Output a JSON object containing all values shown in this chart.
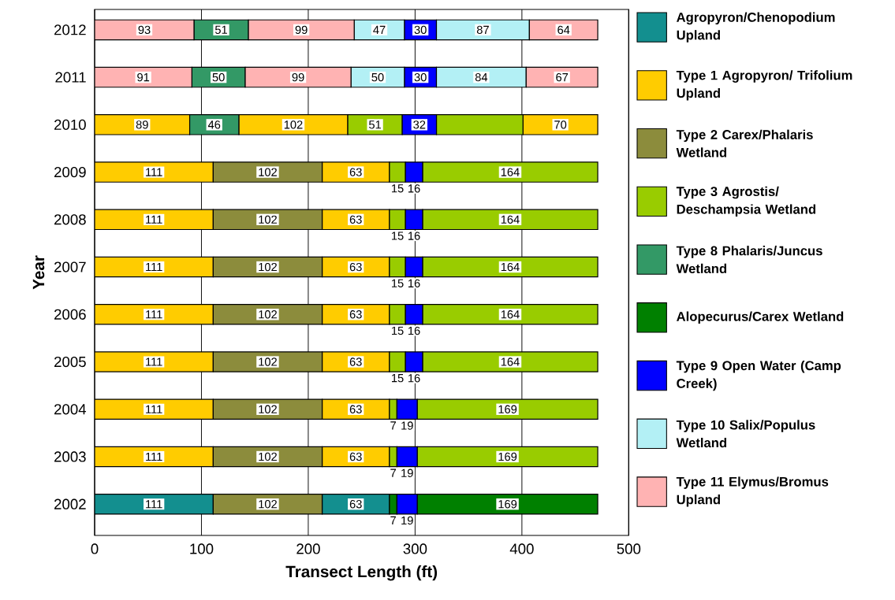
{
  "chart_data": {
    "type": "bar",
    "orientation": "horizontal",
    "xlabel": "Transect Length (ft)",
    "ylabel": "Year",
    "categories": [
      "2012",
      "2011",
      "2010",
      "2009",
      "2008",
      "2007",
      "2006",
      "2005",
      "2004",
      "2003",
      "2002"
    ],
    "xlim": [
      0,
      500
    ],
    "xticks": [
      0,
      100,
      200,
      300,
      400,
      500
    ],
    "grid": "x",
    "legend": "right",
    "series": [
      {
        "name": "Agropyron/Chenopodium Upland",
        "color": "#138f8f",
        "values": [
          null,
          null,
          null,
          null,
          null,
          null,
          null,
          null,
          null,
          null,
          111
        ],
        "base": [
          null,
          null,
          null,
          null,
          null,
          null,
          null,
          null,
          null,
          null,
          0
        ],
        "value_labels": [
          null,
          null,
          null,
          null,
          null,
          null,
          null,
          null,
          null,
          null,
          "111"
        ]
      },
      {
        "color": "#138f8f",
        "values": [
          null,
          null,
          null,
          null,
          null,
          null,
          null,
          null,
          null,
          null,
          63
        ],
        "base": [
          null,
          null,
          null,
          null,
          null,
          null,
          null,
          null,
          null,
          null,
          213
        ],
        "value_labels": [
          null,
          null,
          null,
          null,
          null,
          null,
          null,
          null,
          null,
          null,
          "63"
        ]
      },
      {
        "name": "Type 1 Agropyron/ Trifolium Upland",
        "color": "#ffcc00",
        "values": [
          null,
          null,
          89,
          111,
          111,
          111,
          111,
          111,
          111,
          111,
          null
        ],
        "base": [
          null,
          null,
          0,
          0,
          0,
          0,
          0,
          0,
          0,
          0,
          null
        ],
        "value_labels": [
          null,
          null,
          "89",
          "111",
          "111",
          "111",
          "111",
          "111",
          "111",
          "111",
          null
        ]
      },
      {
        "color": "#ffcc00",
        "values": [
          null,
          null,
          102,
          63,
          63,
          63,
          63,
          63,
          63,
          63,
          null
        ],
        "base": [
          null,
          null,
          135,
          213,
          213,
          213,
          213,
          213,
          213,
          213,
          null
        ],
        "value_labels": [
          null,
          null,
          "102",
          "63",
          "63",
          "63",
          "63",
          "63",
          "63",
          "63",
          null
        ]
      },
      {
        "color": "#ffcc00",
        "values": [
          null,
          null,
          70,
          null,
          null,
          null,
          null,
          null,
          null,
          null,
          null
        ],
        "base": [
          null,
          null,
          401,
          null,
          null,
          null,
          null,
          null,
          null,
          null,
          null
        ],
        "value_labels": [
          null,
          null,
          "70",
          null,
          null,
          null,
          null,
          null,
          null,
          null,
          null
        ]
      },
      {
        "name": "Type 2 Carex/Phalaris Wetland",
        "color": "#8c8c3c",
        "values": [
          null,
          null,
          null,
          102,
          102,
          102,
          102,
          102,
          102,
          102,
          102
        ],
        "base": [
          null,
          null,
          null,
          111,
          111,
          111,
          111,
          111,
          111,
          111,
          111
        ],
        "value_labels": [
          null,
          null,
          null,
          "102",
          "102",
          "102",
          "102",
          "102",
          "102",
          "102",
          "102"
        ]
      },
      {
        "name": "Type 3 Agrostis/ Deschampsia Wetland",
        "color": "#99cc00",
        "values": [
          null,
          null,
          51,
          15,
          15,
          15,
          15,
          15,
          7,
          7,
          null
        ],
        "base": [
          null,
          null,
          237,
          276,
          276,
          276,
          276,
          276,
          276,
          276,
          null
        ],
        "value_labels": [
          null,
          null,
          "51",
          "15",
          "15",
          "15",
          "15",
          "15",
          "7",
          "7",
          null
        ]
      },
      {
        "color": "#99cc00",
        "values": [
          null,
          null,
          81,
          164,
          164,
          164,
          164,
          164,
          169,
          169,
          null
        ],
        "base": [
          null,
          null,
          320,
          307,
          307,
          307,
          307,
          307,
          302,
          302,
          null
        ],
        "value_labels": [
          null,
          null,
          null,
          "164",
          "164",
          "164",
          "164",
          "164",
          "169",
          "169",
          null
        ]
      },
      {
        "name": "Type 8 Phalaris/Juncus Wetland",
        "color": "#339966",
        "values": [
          51,
          50,
          46,
          null,
          null,
          null,
          null,
          null,
          null,
          null,
          null
        ],
        "base": [
          93,
          91,
          89,
          null,
          null,
          null,
          null,
          null,
          null,
          null,
          null
        ],
        "value_labels": [
          "51",
          "50",
          "46",
          null,
          null,
          null,
          null,
          null,
          null,
          null,
          null
        ]
      },
      {
        "name": "Alopecurus/Carex Wetland",
        "color": "#008000",
        "values": [
          null,
          null,
          null,
          null,
          null,
          null,
          null,
          null,
          null,
          null,
          7
        ],
        "base": [
          null,
          null,
          null,
          null,
          null,
          null,
          null,
          null,
          null,
          null,
          276
        ],
        "value_labels": [
          null,
          null,
          null,
          null,
          null,
          null,
          null,
          null,
          null,
          null,
          "7"
        ]
      },
      {
        "color": "#008000",
        "values": [
          null,
          null,
          null,
          null,
          null,
          null,
          null,
          null,
          null,
          null,
          169
        ],
        "base": [
          null,
          null,
          null,
          null,
          null,
          null,
          null,
          null,
          null,
          null,
          302
        ],
        "value_labels": [
          null,
          null,
          null,
          null,
          null,
          null,
          null,
          null,
          null,
          null,
          "169"
        ]
      },
      {
        "name": "Type 9 Open Water (Camp Creek)",
        "color": "#0000ff",
        "values": [
          30,
          30,
          32,
          16,
          16,
          16,
          16,
          16,
          19,
          19,
          19
        ],
        "base": [
          290,
          290,
          288,
          291,
          291,
          291,
          291,
          291,
          283,
          283,
          283
        ],
        "value_labels": [
          "30",
          "30",
          "32",
          "16",
          "16",
          "16",
          "16",
          "16",
          "19",
          "19",
          "19"
        ]
      },
      {
        "name": "Type 10 Salix/Populus Wetland",
        "color": "#b3f0f5",
        "values": [
          47,
          50,
          null,
          null,
          null,
          null,
          null,
          null,
          null,
          null,
          null
        ],
        "base": [
          243,
          240,
          null,
          null,
          null,
          null,
          null,
          null,
          null,
          null,
          null
        ],
        "value_labels": [
          "47",
          "50",
          null,
          null,
          null,
          null,
          null,
          null,
          null,
          null,
          null
        ]
      },
      {
        "color": "#b3f0f5",
        "values": [
          87,
          84,
          null,
          null,
          null,
          null,
          null,
          null,
          null,
          null,
          null
        ],
        "base": [
          320,
          320,
          null,
          null,
          null,
          null,
          null,
          null,
          null,
          null,
          null
        ],
        "value_labels": [
          "87",
          "84",
          null,
          null,
          null,
          null,
          null,
          null,
          null,
          null,
          null
        ]
      },
      {
        "name": "Type 11 Elymus/Bromus Upland",
        "color": "#ffb3b3",
        "values": [
          93,
          91,
          null,
          null,
          null,
          null,
          null,
          null,
          null,
          null,
          null
        ],
        "base": [
          0,
          0,
          null,
          null,
          null,
          null,
          null,
          null,
          null,
          null,
          null
        ],
        "value_labels": [
          "93",
          "91",
          null,
          null,
          null,
          null,
          null,
          null,
          null,
          null,
          null
        ]
      },
      {
        "color": "#ffb3b3",
        "values": [
          99,
          99,
          null,
          null,
          null,
          null,
          null,
          null,
          null,
          null,
          null
        ],
        "base": [
          144,
          141,
          null,
          null,
          null,
          null,
          null,
          null,
          null,
          null,
          null
        ],
        "value_labels": [
          "99",
          "99",
          null,
          null,
          null,
          null,
          null,
          null,
          null,
          null,
          null
        ]
      },
      {
        "color": "#ffb3b3",
        "values": [
          64,
          67,
          null,
          null,
          null,
          null,
          null,
          null,
          null,
          null,
          null
        ],
        "base": [
          407,
          404,
          null,
          null,
          null,
          null,
          null,
          null,
          null,
          null,
          null
        ],
        "value_labels": [
          "64",
          "67",
          null,
          null,
          null,
          null,
          null,
          null,
          null,
          null,
          null
        ]
      }
    ]
  }
}
